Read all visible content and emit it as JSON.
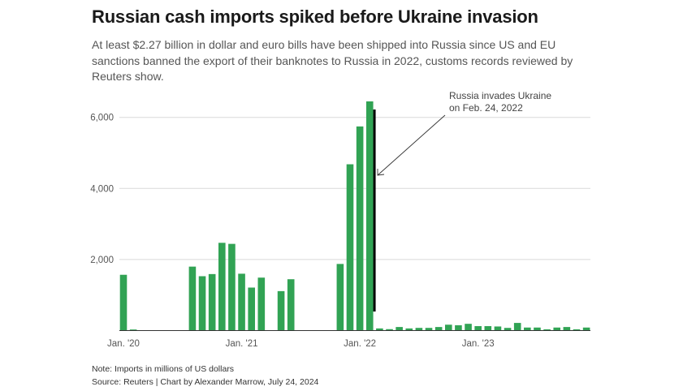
{
  "title": "Russian cash imports spiked before Ukraine invasion",
  "subtitle": "At least $2.27 billion in dollar and euro bills have been shipped into Russia since US and EU sanctions banned the export of their banknotes to Russia in 2022, customs records reviewed by Reuters show.",
  "note": "Note: Imports in millions of US dollars",
  "source": "Source: Reuters | Chart by Alexander Marrow, July 24, 2024",
  "chart_data": {
    "type": "bar",
    "title": "Russian cash imports spiked before Ukraine invasion",
    "xlabel": "",
    "ylabel": "",
    "units": "millions of US dollars",
    "ylim": [
      0,
      6500
    ],
    "yticks": [
      {
        "value": 2000,
        "label": "2,000"
      },
      {
        "value": 4000,
        "label": "4,000"
      },
      {
        "value": 6000,
        "label": "6,000"
      }
    ],
    "xticks": [
      {
        "index": 0,
        "label": "Jan. '20"
      },
      {
        "index": 12,
        "label": "Jan. '21"
      },
      {
        "index": 24,
        "label": "Jan. '22"
      },
      {
        "index": 36,
        "label": "Jan. '23"
      }
    ],
    "grid": true,
    "bar_color": "#31a354",
    "categories": [
      "2020-01",
      "2020-02",
      "2020-03",
      "2020-04",
      "2020-05",
      "2020-06",
      "2020-07",
      "2020-08",
      "2020-09",
      "2020-10",
      "2020-11",
      "2020-12",
      "2021-01",
      "2021-02",
      "2021-03",
      "2021-04",
      "2021-05",
      "2021-06",
      "2021-07",
      "2021-08",
      "2021-09",
      "2021-10",
      "2021-11",
      "2021-12",
      "2022-01",
      "2022-02",
      "2022-03",
      "2022-04",
      "2022-05",
      "2022-06",
      "2022-07",
      "2022-08",
      "2022-09",
      "2022-10",
      "2022-11",
      "2022-12",
      "2023-01",
      "2023-02",
      "2023-03",
      "2023-04",
      "2023-05",
      "2023-06",
      "2023-07",
      "2023-08",
      "2023-09",
      "2023-10",
      "2023-11",
      "2023-12"
    ],
    "values": [
      1570,
      30,
      0,
      0,
      0,
      0,
      0,
      1800,
      1530,
      1590,
      2470,
      2440,
      1600,
      1210,
      1490,
      0,
      1110,
      1445,
      0,
      0,
      0,
      0,
      1875,
      4680,
      5745,
      6450,
      60,
      40,
      100,
      60,
      75,
      75,
      100,
      165,
      150,
      190,
      125,
      125,
      115,
      75,
      215,
      85,
      85,
      35,
      85,
      100,
      35,
      85
    ],
    "annotation": {
      "text_lines": [
        "Russia invades Ukraine",
        "on Feb. 24, 2022"
      ],
      "date": "2022-02-24",
      "marker_color": "#000000"
    }
  }
}
